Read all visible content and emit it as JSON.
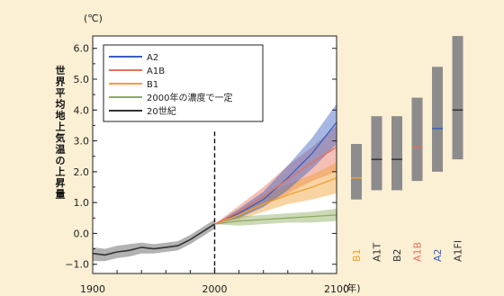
{
  "colors": {
    "background": "#fbefd4",
    "plot_background": "#ffffff",
    "A2": "#3a5fc0",
    "A1B": "#e8705a",
    "B1": "#f0a030",
    "constant2000": "#8faa60",
    "c20": "#333333",
    "A1T": "#333333",
    "A1FI": "#333333",
    "bar_gray": "#8c8c8c"
  },
  "chart_data": {
    "type": "line",
    "unit_label": "(℃)",
    "xunit_label": "(年)",
    "ylabel": "世界平均地上気温の上昇量",
    "xlim": [
      1900,
      2100
    ],
    "ylim": [
      -1.3,
      6.4
    ],
    "xticks": [
      1900,
      2000,
      2100
    ],
    "yticks": [
      -1.0,
      0.0,
      1.0,
      2.0,
      3.0,
      4.0,
      5.0,
      6.0
    ],
    "ytick_labels": [
      "−1.0",
      "0.0",
      "1.0",
      "2.0",
      "3.0",
      "4.0",
      "5.0",
      "6.0"
    ],
    "divider_year": 2000,
    "legend_position": "top-left",
    "series": [
      {
        "name": "A2",
        "key": "A2",
        "x": [
          2000,
          2020,
          2040,
          2060,
          2080,
          2100
        ],
        "y": [
          0.3,
          0.65,
          1.1,
          1.8,
          2.6,
          3.6
        ],
        "band_low": [
          0.3,
          0.5,
          0.85,
          1.4,
          2.1,
          2.9
        ],
        "band_high": [
          0.3,
          0.8,
          1.35,
          2.2,
          3.1,
          4.2
        ]
      },
      {
        "name": "A1B",
        "key": "A1B",
        "x": [
          2000,
          2020,
          2040,
          2060,
          2080,
          2100
        ],
        "y": [
          0.3,
          0.7,
          1.2,
          1.75,
          2.3,
          2.8
        ],
        "band_low": [
          0.3,
          0.5,
          0.9,
          1.3,
          1.7,
          2.0
        ],
        "band_high": [
          0.3,
          0.9,
          1.5,
          2.2,
          2.8,
          3.5
        ]
      },
      {
        "name": "B1",
        "key": "B1",
        "x": [
          2000,
          2020,
          2040,
          2060,
          2080,
          2100
        ],
        "y": [
          0.3,
          0.6,
          0.95,
          1.25,
          1.5,
          1.8
        ],
        "band_low": [
          0.3,
          0.45,
          0.7,
          0.95,
          1.1,
          1.3
        ],
        "band_high": [
          0.3,
          0.75,
          1.2,
          1.6,
          1.9,
          2.3
        ]
      },
      {
        "name": "2000年の濃度で一定",
        "key": "constant2000",
        "x": [
          2000,
          2020,
          2040,
          2060,
          2080,
          2100
        ],
        "y": [
          0.3,
          0.4,
          0.45,
          0.5,
          0.55,
          0.6
        ],
        "band_low": [
          0.3,
          0.25,
          0.3,
          0.35,
          0.35,
          0.4
        ],
        "band_high": [
          0.3,
          0.55,
          0.6,
          0.65,
          0.7,
          0.8
        ]
      },
      {
        "name": "20世紀",
        "key": "c20",
        "x": [
          1900,
          1910,
          1920,
          1930,
          1940,
          1950,
          1960,
          1970,
          1980,
          1990,
          2000
        ],
        "y": [
          -0.65,
          -0.7,
          -0.6,
          -0.55,
          -0.45,
          -0.5,
          -0.45,
          -0.4,
          -0.2,
          0.05,
          0.3
        ],
        "band_low": [
          -0.9,
          -0.9,
          -0.8,
          -0.75,
          -0.65,
          -0.65,
          -0.6,
          -0.55,
          -0.35,
          -0.1,
          0.15
        ],
        "band_high": [
          -0.45,
          -0.5,
          -0.4,
          -0.35,
          -0.3,
          -0.35,
          -0.3,
          -0.25,
          -0.05,
          0.2,
          0.45
        ]
      }
    ],
    "scenario_bars": [
      {
        "name": "B1",
        "key": "B1",
        "low": 1.1,
        "high": 2.9,
        "best": 1.8
      },
      {
        "name": "A1T",
        "key": "A1T",
        "low": 1.4,
        "high": 3.8,
        "best": 2.4
      },
      {
        "name": "B2",
        "key": "B2",
        "low": 1.4,
        "high": 3.8,
        "best": 2.4
      },
      {
        "name": "A1B",
        "key": "A1B",
        "low": 1.7,
        "high": 4.4,
        "best": 2.8
      },
      {
        "name": "A2",
        "key": "A2",
        "low": 2.0,
        "high": 5.4,
        "best": 3.4
      },
      {
        "name": "A1FI",
        "key": "A1FI",
        "low": 2.4,
        "high": 6.4,
        "best": 4.0
      }
    ]
  }
}
